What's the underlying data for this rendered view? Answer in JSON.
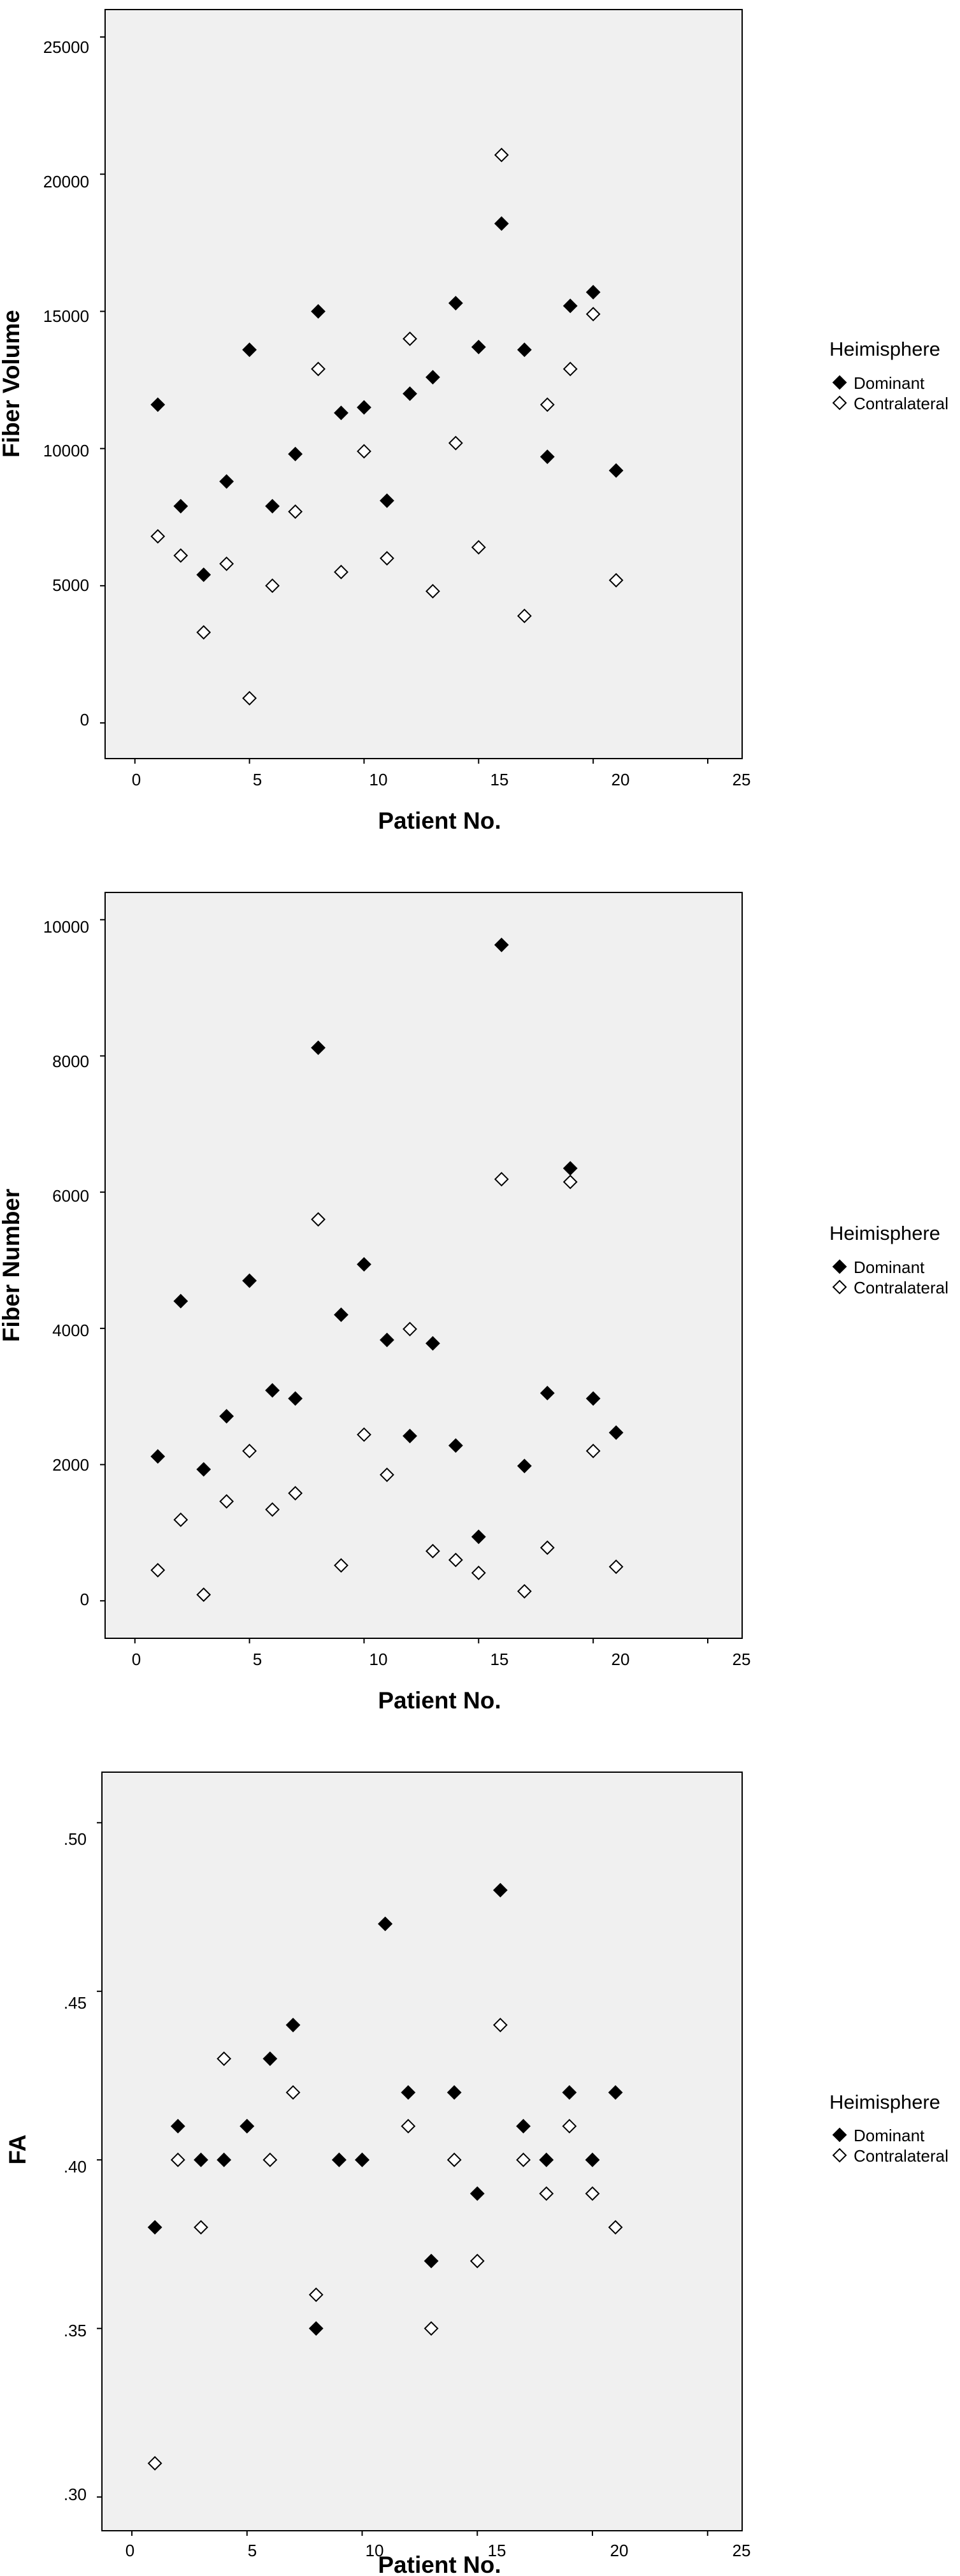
{
  "colors": {
    "plot_background": "#f0f0f0",
    "frame": "#000000",
    "marker": "#000000"
  },
  "chart_data": [
    {
      "type": "scatter",
      "xlabel": "Patient No.",
      "ylabel": "Fiber Volume",
      "xlim": [
        -1.3,
        26.5
      ],
      "ylim": [
        -1300,
        26000
      ],
      "x_ticks": [
        0,
        5,
        10,
        15,
        20,
        25
      ],
      "x_tick_labels": [
        "0",
        "5",
        "10",
        "15",
        "20",
        "25"
      ],
      "y_ticks": [
        0,
        5000,
        10000,
        15000,
        20000,
        25000
      ],
      "y_tick_labels": [
        "0",
        "5000",
        "10000",
        "15000",
        "20000",
        "25000"
      ],
      "grid": false,
      "legend": {
        "title": "Heimisphere",
        "placement": "right"
      },
      "series": [
        {
          "name": "Dominant",
          "marker": "filled-diamond",
          "x": [
            1,
            2,
            3,
            4,
            5,
            6,
            7,
            8,
            9,
            10,
            11,
            12,
            13,
            14,
            15,
            16,
            17,
            18,
            19,
            20,
            21
          ],
          "y": [
            11600,
            7900,
            5400,
            8800,
            13600,
            7900,
            9800,
            15000,
            11300,
            11500,
            8100,
            12000,
            12600,
            15300,
            13700,
            18200,
            13600,
            9700,
            15200,
            15700,
            9200
          ]
        },
        {
          "name": "Contralateral",
          "marker": "open-diamond",
          "x": [
            1,
            2,
            3,
            4,
            5,
            6,
            7,
            8,
            9,
            10,
            11,
            12,
            13,
            14,
            15,
            16,
            17,
            18,
            19,
            20,
            21
          ],
          "y": [
            6800,
            6100,
            3300,
            5800,
            900,
            5000,
            7700,
            12900,
            5500,
            9900,
            6000,
            14000,
            4800,
            10200,
            6400,
            20700,
            3900,
            11600,
            12900,
            14900,
            5200
          ]
        }
      ]
    },
    {
      "type": "scatter",
      "xlabel": "Patient No.",
      "ylabel": "Fiber Number",
      "xlim": [
        -1.3,
        26.5
      ],
      "ylim": [
        -550,
        10400
      ],
      "x_ticks": [
        0,
        5,
        10,
        15,
        20,
        25
      ],
      "x_tick_labels": [
        "0",
        "5",
        "10",
        "15",
        "20",
        "25"
      ],
      "y_ticks": [
        0,
        2000,
        4000,
        6000,
        8000,
        10000
      ],
      "y_tick_labels": [
        "0",
        "2000",
        "4000",
        "6000",
        "8000",
        "10000"
      ],
      "grid": false,
      "legend": {
        "title": "Heimisphere",
        "placement": "right"
      },
      "series": [
        {
          "name": "Dominant",
          "marker": "filled-diamond",
          "x": [
            1,
            2,
            3,
            4,
            5,
            6,
            7,
            8,
            9,
            10,
            11,
            12,
            13,
            14,
            15,
            16,
            17,
            18,
            19,
            20,
            21
          ],
          "y": [
            2120,
            4400,
            1930,
            2710,
            4700,
            3090,
            2970,
            8120,
            4200,
            4940,
            3830,
            2420,
            3780,
            2280,
            940,
            9630,
            1980,
            3050,
            6350,
            2970,
            2470
          ]
        },
        {
          "name": "Contralateral",
          "marker": "open-diamond",
          "x": [
            1,
            2,
            3,
            4,
            5,
            6,
            7,
            8,
            9,
            10,
            11,
            12,
            13,
            14,
            15,
            16,
            17,
            18,
            19,
            20,
            21
          ],
          "y": [
            450,
            1190,
            90,
            1460,
            2200,
            1340,
            1580,
            5600,
            520,
            2440,
            1850,
            3990,
            730,
            600,
            410,
            6190,
            140,
            780,
            6150,
            2200,
            500
          ]
        }
      ]
    },
    {
      "type": "scatter",
      "xlabel": "Patient No.",
      "ylabel": "FA",
      "xlim": [
        -1.3,
        26.5
      ],
      "ylim": [
        0.29,
        0.515
      ],
      "x_ticks": [
        0,
        5,
        10,
        15,
        20,
        25
      ],
      "x_tick_labels": [
        "0",
        "5",
        "10",
        "15",
        "20",
        "25"
      ],
      "y_ticks": [
        0.3,
        0.35,
        0.4,
        0.45,
        0.5
      ],
      "y_tick_labels": [
        ".30",
        ".35",
        ".40",
        ".45",
        ".50"
      ],
      "grid": false,
      "legend": {
        "title": "Heimisphere",
        "placement": "right"
      },
      "series": [
        {
          "name": "Dominant",
          "marker": "filled-diamond",
          "x": [
            1,
            2,
            3,
            4,
            5,
            6,
            7,
            8,
            9,
            10,
            11,
            12,
            13,
            14,
            15,
            16,
            17,
            18,
            19,
            20,
            21
          ],
          "y": [
            0.38,
            0.41,
            0.4,
            0.4,
            0.41,
            0.43,
            0.44,
            0.35,
            0.4,
            0.4,
            0.47,
            0.42,
            0.37,
            0.42,
            0.39,
            0.48,
            0.41,
            0.4,
            0.42,
            0.4,
            0.42
          ]
        },
        {
          "name": "Contralateral",
          "marker": "open-diamond",
          "x": [
            1,
            2,
            3,
            4,
            5,
            6,
            7,
            8,
            9,
            10,
            11,
            12,
            13,
            14,
            15,
            16,
            17,
            18,
            19,
            20,
            21
          ],
          "y": [
            0.31,
            0.4,
            0.38,
            0.43,
            0.41,
            0.4,
            0.42,
            0.36,
            0.4,
            0.4,
            0.47,
            0.41,
            0.35,
            0.4,
            0.37,
            0.44,
            0.4,
            0.39,
            0.41,
            0.39,
            0.38
          ]
        }
      ]
    }
  ]
}
